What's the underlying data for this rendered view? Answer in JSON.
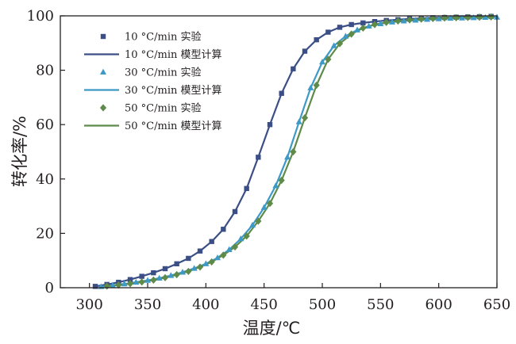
{
  "chart_data": {
    "type": "line",
    "xlabel": "温度/℃",
    "ylabel": "转化率/%",
    "xlim": [
      275,
      650
    ],
    "ylim": [
      0,
      100
    ],
    "x_ticks": [
      300,
      350,
      400,
      450,
      500,
      550,
      600,
      650
    ],
    "y_ticks": [
      0,
      20,
      40,
      60,
      80,
      100
    ],
    "x_tick_labels": [
      "300",
      "350",
      "400",
      "450",
      "500",
      "550",
      "600",
      "650"
    ],
    "y_tick_labels": [
      "0",
      "20",
      "40",
      "60",
      "80",
      "100"
    ],
    "grid": false,
    "legend_position": "top-left",
    "series": [
      {
        "name": "10 °C/min 实验",
        "kind": "scatter",
        "marker": "square",
        "color": "#3b4f86",
        "x": [
          305,
          315,
          325,
          335,
          345,
          355,
          365,
          375,
          385,
          395,
          405,
          415,
          425,
          435,
          445,
          455,
          465,
          475,
          485,
          495,
          505,
          515,
          525,
          535,
          545,
          555,
          565,
          575,
          585,
          595,
          605,
          615,
          625,
          635,
          645
        ],
        "y": [
          0.5,
          1.2,
          2.0,
          3.0,
          4.2,
          5.5,
          7.0,
          8.8,
          10.8,
          13.5,
          17.0,
          21.5,
          28.0,
          36.5,
          48.0,
          60.0,
          71.5,
          80.5,
          87.0,
          91.2,
          94.0,
          95.8,
          96.8,
          97.4,
          97.9,
          98.3,
          98.6,
          98.9,
          99.1,
          99.3,
          99.4,
          99.5,
          99.6,
          99.7,
          99.8
        ]
      },
      {
        "name": "10 °C/min 模型计算",
        "kind": "line",
        "color": "#3b4f86",
        "x": [
          305,
          315,
          325,
          335,
          345,
          355,
          365,
          375,
          385,
          395,
          405,
          415,
          425,
          435,
          445,
          455,
          465,
          475,
          485,
          495,
          505,
          515,
          525,
          535,
          545,
          555,
          565,
          575,
          585,
          595,
          605,
          615,
          625,
          635,
          645
        ],
        "y": [
          0.5,
          1.2,
          2.0,
          3.0,
          4.2,
          5.5,
          7.0,
          8.8,
          10.8,
          13.5,
          17.0,
          21.5,
          28.0,
          36.5,
          48.0,
          60.0,
          71.5,
          80.5,
          87.0,
          91.2,
          94.0,
          95.8,
          96.8,
          97.4,
          97.9,
          98.3,
          98.6,
          98.9,
          99.1,
          99.3,
          99.4,
          99.5,
          99.6,
          99.7,
          99.8
        ]
      },
      {
        "name": "30 °C/min 实验",
        "kind": "scatter",
        "marker": "triangle",
        "color": "#3d99c6",
        "x": [
          310,
          320,
          330,
          340,
          350,
          360,
          370,
          380,
          390,
          400,
          410,
          420,
          430,
          440,
          450,
          460,
          470,
          480,
          490,
          500,
          510,
          520,
          530,
          540,
          550,
          560,
          570,
          580,
          590,
          600,
          610,
          620,
          630,
          640,
          650
        ],
        "y": [
          0.4,
          0.9,
          1.4,
          2.0,
          2.7,
          3.5,
          4.5,
          5.7,
          7.1,
          8.8,
          11.0,
          14.0,
          18.0,
          23.0,
          29.5,
          37.5,
          48.0,
          61.0,
          73.5,
          83.0,
          89.0,
          92.5,
          94.8,
          96.2,
          97.1,
          97.7,
          98.1,
          98.4,
          98.7,
          98.9,
          99.1,
          99.2,
          99.3,
          99.4,
          99.5
        ]
      },
      {
        "name": "30 °C/min 模型计算",
        "kind": "line",
        "color": "#3d99c6",
        "x": [
          310,
          320,
          330,
          340,
          350,
          360,
          370,
          380,
          390,
          400,
          410,
          420,
          430,
          440,
          450,
          460,
          470,
          480,
          490,
          500,
          510,
          520,
          530,
          540,
          550,
          560,
          570,
          580,
          590,
          600,
          610,
          620,
          630,
          640,
          650
        ],
        "y": [
          0.4,
          0.9,
          1.4,
          2.0,
          2.7,
          3.5,
          4.5,
          5.7,
          7.1,
          8.8,
          11.0,
          14.0,
          18.0,
          23.0,
          29.5,
          37.5,
          48.0,
          61.0,
          73.5,
          83.0,
          89.0,
          92.5,
          94.8,
          96.2,
          97.1,
          97.7,
          98.1,
          98.4,
          98.7,
          98.9,
          99.1,
          99.2,
          99.3,
          99.4,
          99.5
        ]
      },
      {
        "name": "50 °C/min 实验",
        "kind": "scatter",
        "marker": "diamond",
        "color": "#5e8a4a",
        "x": [
          315,
          325,
          335,
          345,
          355,
          365,
          375,
          385,
          395,
          405,
          415,
          425,
          435,
          445,
          455,
          465,
          475,
          485,
          495,
          505,
          515,
          525,
          535,
          545,
          555,
          565,
          575,
          585,
          595,
          605,
          615,
          625,
          635,
          645
        ],
        "y": [
          0.6,
          1.0,
          1.5,
          2.1,
          2.8,
          3.7,
          4.8,
          6.0,
          7.6,
          9.5,
          12.0,
          15.0,
          19.0,
          24.5,
          31.0,
          39.5,
          50.0,
          62.5,
          74.5,
          84.0,
          89.8,
          93.3,
          95.5,
          96.8,
          97.6,
          98.1,
          98.5,
          98.8,
          99.0,
          99.2,
          99.3,
          99.4,
          99.5,
          99.6
        ]
      },
      {
        "name": "50 °C/min 模型计算",
        "kind": "line",
        "color": "#5e8a4a",
        "x": [
          315,
          325,
          335,
          345,
          355,
          365,
          375,
          385,
          395,
          405,
          415,
          425,
          435,
          445,
          455,
          465,
          475,
          485,
          495,
          505,
          515,
          525,
          535,
          545,
          555,
          565,
          575,
          585,
          595,
          605,
          615,
          625,
          635,
          645
        ],
        "y": [
          0.6,
          1.0,
          1.5,
          2.1,
          2.8,
          3.7,
          4.8,
          6.0,
          7.6,
          9.5,
          12.0,
          15.0,
          19.0,
          24.5,
          31.0,
          39.5,
          50.0,
          62.5,
          74.5,
          84.0,
          89.8,
          93.3,
          95.5,
          96.8,
          97.6,
          98.1,
          98.5,
          98.8,
          99.0,
          99.2,
          99.3,
          99.4,
          99.5,
          99.6
        ]
      }
    ]
  }
}
